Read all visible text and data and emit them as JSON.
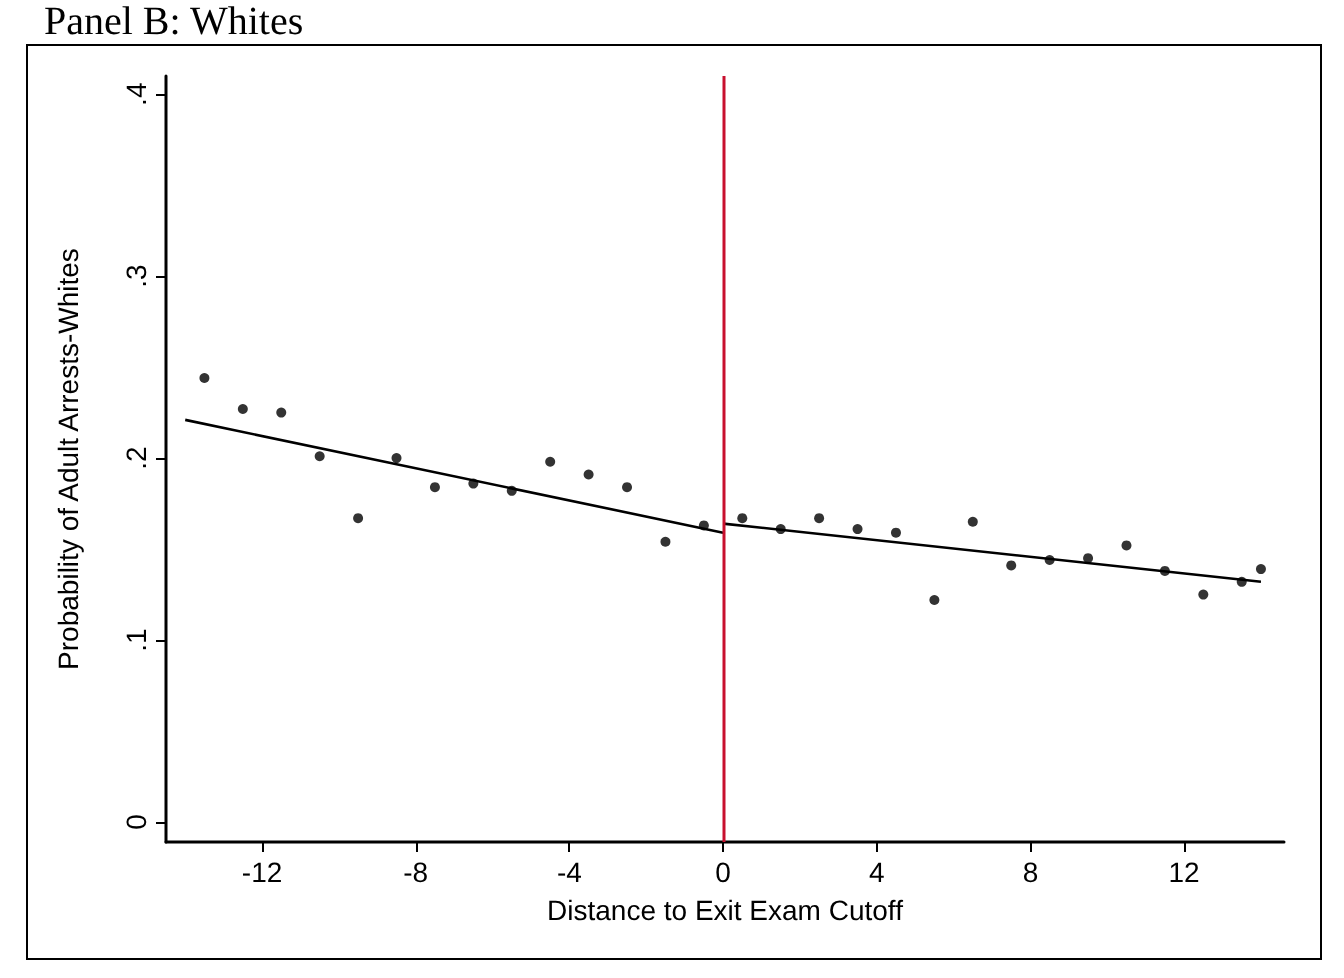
{
  "chart_data": {
    "type": "scatter",
    "title": "Panel B: Whites",
    "xlabel": "Distance to Exit Exam Cutoff",
    "ylabel": "Probability of Adult Arrests-Whites",
    "x": [
      -13.5,
      -12.5,
      -11.5,
      -10.5,
      -9.5,
      -8.5,
      -7.5,
      -6.5,
      -5.5,
      -4.5,
      -3.5,
      -2.5,
      -1.5,
      -0.5,
      0.5,
      1.5,
      2.5,
      3.5,
      4.5,
      5.5,
      6.5,
      7.5,
      8.5,
      9.5,
      10.5,
      11.5,
      12.5,
      13.5,
      14
    ],
    "series": [
      {
        "color": "#000000",
        "values": [
          0.244,
          0.227,
          0.225,
          0.201,
          0.167,
          0.2,
          0.184,
          0.186,
          0.182,
          0.198,
          0.191,
          0.184,
          0.154,
          0.163,
          0.167,
          0.161,
          0.167,
          0.161,
          0.159,
          0.122,
          0.165,
          0.141,
          0.144,
          0.145,
          0.152,
          0.138,
          0.125,
          0.132,
          0.139
        ]
      },
      {
        "type": "line",
        "marker": "none",
        "color": "#000000",
        "x": [
          -14,
          0
        ],
        "values": [
          0.221,
          0.159
        ]
      },
      {
        "type": "line",
        "marker": "none",
        "color": "#000000",
        "x": [
          0,
          14
        ],
        "values": [
          0.164,
          0.132
        ]
      }
    ],
    "xlim": [
      -14.5,
      14.6
    ],
    "ylim": [
      -0.011,
      0.41
    ],
    "xticks": [
      -12,
      -8,
      -4,
      0,
      4,
      8,
      12
    ],
    "yticks": [
      0,
      {
        "value": 0.1,
        "label": ".1"
      },
      {
        "value": 0.2,
        "label": ".2"
      },
      {
        "value": 0.3,
        "label": ".3"
      },
      {
        "value": 0.4,
        "label": ".4"
      }
    ],
    "ref_lines": [
      {
        "axis": "x",
        "value": 0,
        "color": "#c8102e"
      }
    ],
    "grid": false,
    "marker": "circle",
    "line_style": "solid"
  }
}
